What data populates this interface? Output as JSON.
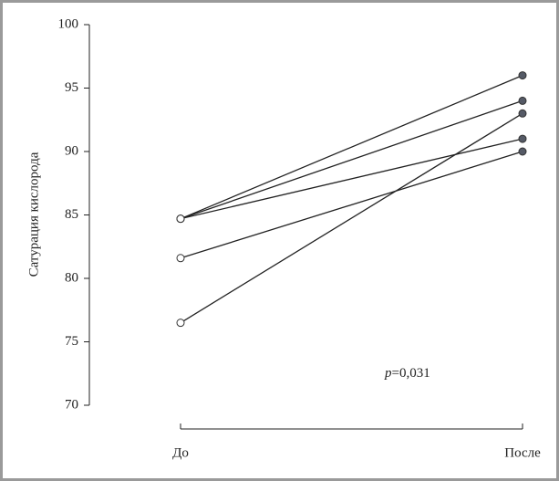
{
  "chart_data": {
    "type": "line",
    "y_label": "Сатурация кислорода",
    "categories": [
      "До",
      "После"
    ],
    "series": [
      {
        "color": "#222222",
        "values": [
          84.7,
          96.0
        ]
      },
      {
        "color": "#222222",
        "values": [
          84.7,
          94.0
        ]
      },
      {
        "color": "#222222",
        "values": [
          84.7,
          91.0
        ]
      },
      {
        "color": "#222222",
        "values": [
          81.6,
          90.0
        ]
      },
      {
        "color": "#222222",
        "values": [
          76.5,
          93.0
        ]
      }
    ],
    "marker_colors": [
      "#ffffff",
      "#555a66"
    ],
    "ylim": [
      70,
      100
    ],
    "yticks": [
      70,
      75,
      80,
      85,
      90,
      95,
      100
    ],
    "annotation": [
      "p",
      "=0,031"
    ]
  }
}
